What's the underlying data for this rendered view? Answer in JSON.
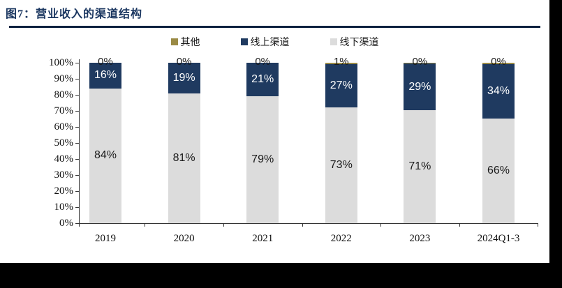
{
  "figure": {
    "title": "图7：营业收入的渠道结构",
    "title_color": "#1A3660",
    "rule_color": "#0E2240"
  },
  "colors": {
    "offline": "#DCDCDC",
    "online": "#1F3A60",
    "other": "#9A8A45",
    "axis": "#333333",
    "label_on_gray": "#1a1a1a",
    "label_on_navy": "#ffffff"
  },
  "chart_data": {
    "type": "bar",
    "stacked": true,
    "title": "营业收入的渠道结构",
    "categories": [
      "2019",
      "2020",
      "2021",
      "2022",
      "2023",
      "2024Q1-3"
    ],
    "series": [
      {
        "name": "线下渠道",
        "color": "#DCDCDC",
        "values": [
          84,
          81,
          79,
          73,
          71,
          66
        ],
        "labels": [
          "84%",
          "81%",
          "79%",
          "73%",
          "71%",
          "66%"
        ]
      },
      {
        "name": "线上渠道",
        "color": "#1F3A60",
        "values": [
          16,
          19,
          21,
          27,
          29,
          34
        ],
        "labels": [
          "16%",
          "19%",
          "21%",
          "27%",
          "29%",
          "34%"
        ]
      },
      {
        "name": "其他",
        "color": "#9A8A45",
        "values": [
          0,
          0,
          0,
          1,
          0,
          0
        ],
        "visual_heights_pct": [
          0,
          0,
          0,
          1,
          0.6,
          0.8
        ],
        "labels": [
          "0%",
          "0%",
          "0%",
          "1%",
          "0%",
          "0%"
        ]
      }
    ],
    "legend": [
      "其他",
      "线上渠道",
      "线下渠道"
    ],
    "legend_position": "top-center",
    "y_ticks": [
      "100%",
      "90%",
      "80%",
      "70%",
      "60%",
      "50%",
      "40%",
      "30%",
      "20%",
      "10%",
      "0%"
    ],
    "ylim": [
      0,
      100
    ],
    "grid": false
  }
}
